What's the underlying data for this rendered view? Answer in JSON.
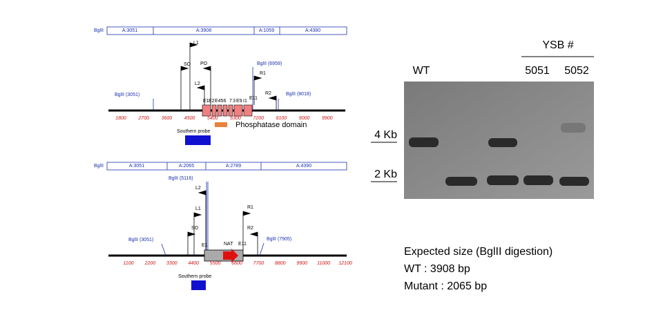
{
  "top_map": {
    "enzyme": "BglII",
    "fragments": [
      "A:3051",
      "A:3908",
      "A:1059",
      "A:4380"
    ],
    "primers": {
      "l1": "L1",
      "so": "SO",
      "po": "PO",
      "l2": "L2",
      "r1": "R1",
      "r2": "R2"
    },
    "sites": [
      "BglII (3051)",
      "BglII (6959)",
      "BglII (8018)"
    ],
    "exons": [
      "E1",
      "E2",
      "E456",
      "7",
      "3",
      "E9",
      "I1"
    ],
    "exon_last": "E11",
    "scale": [
      "1800",
      "2700",
      "3600",
      "4500",
      "5400",
      "6300",
      "7200",
      "8100",
      "9000",
      "9900"
    ],
    "domain": "Phosphatase domain",
    "probe": "Southern probe"
  },
  "bottom_map": {
    "enzyme": "BglII",
    "fragments": [
      "A:3051",
      "A:2065",
      "A:2789",
      "A:4390"
    ],
    "primers": {
      "l2": "L2",
      "l1": "L1",
      "so": "SO",
      "r1": "R1",
      "r2": "R2"
    },
    "sites": [
      "BglII (5116)",
      "BglII (3051)",
      "BglII (7905)"
    ],
    "e1": "E1",
    "nat": "NAT",
    "e11": "E11",
    "scale": [
      "1100",
      "2200",
      "3300",
      "4400",
      "5500",
      "6600",
      "7700",
      "8800",
      "9900",
      "11000",
      "12100"
    ],
    "probe": "Southern probe"
  },
  "gel": {
    "group": "YSB #",
    "lanes": [
      "WT",
      "5051",
      "5052"
    ],
    "markers": [
      "4 Kb",
      "2 Kb"
    ]
  },
  "notes": [
    "Expected size (BglII digestion)",
    "WT : 3908 bp",
    "Mutant : 2065 bp"
  ]
}
